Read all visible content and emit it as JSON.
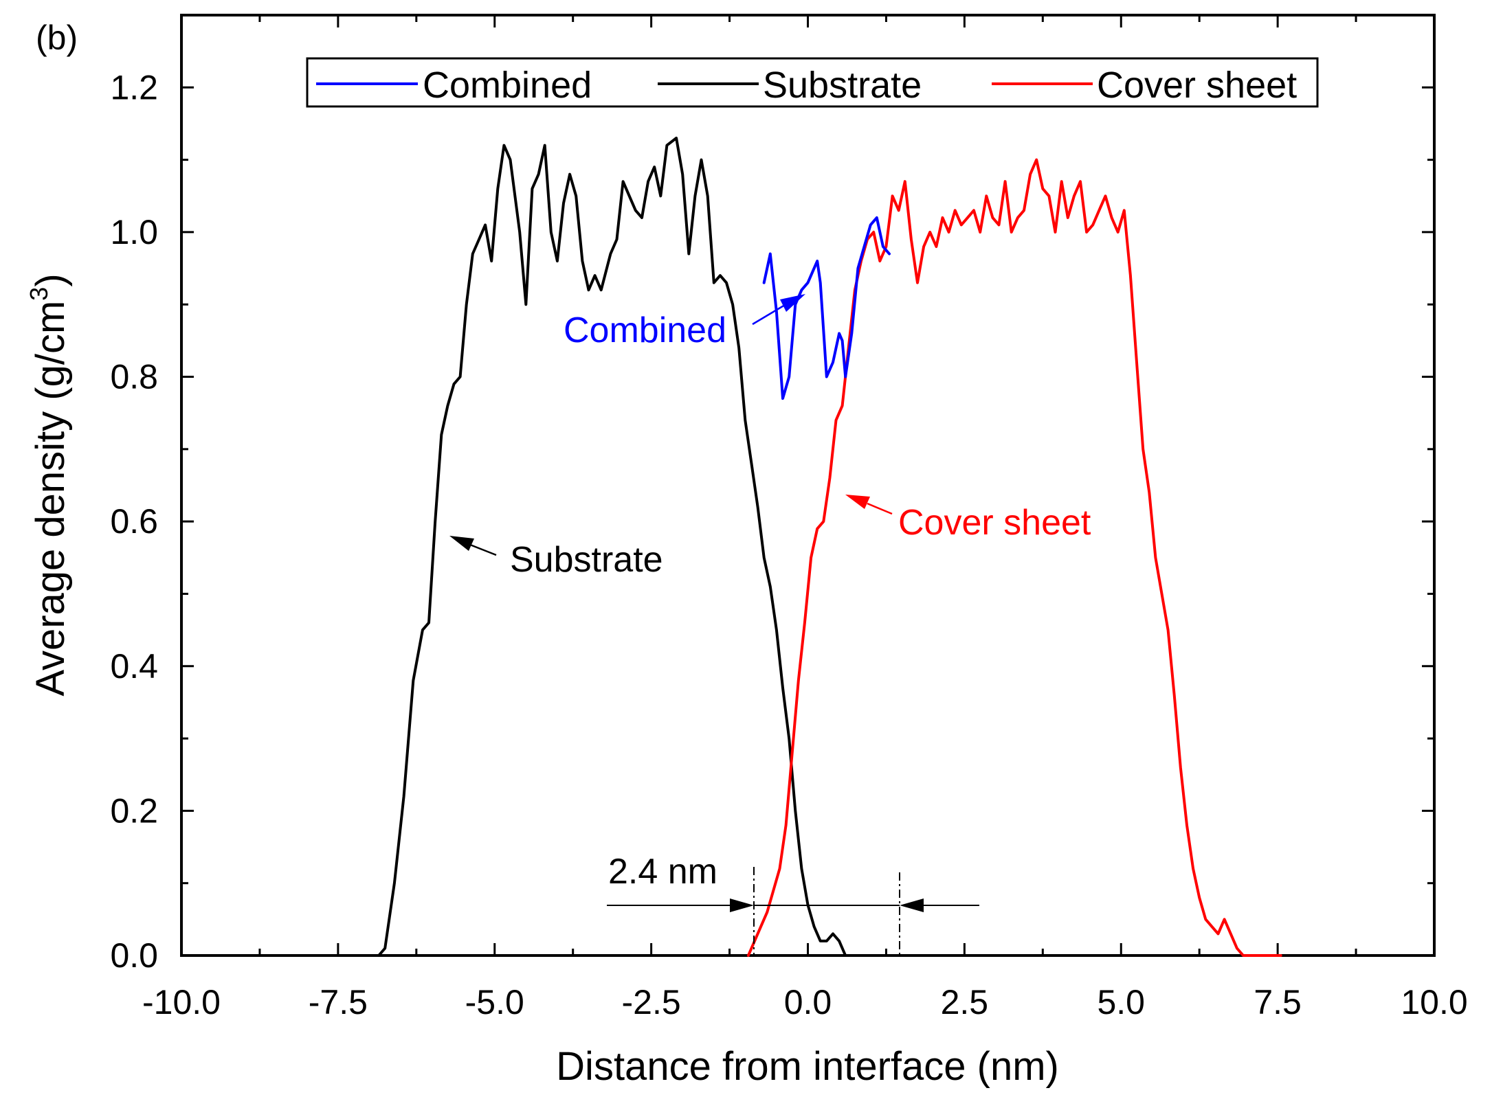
{
  "chart_data": {
    "type": "line",
    "panel_label": "(b)",
    "xlabel": "Distance from interface (nm)",
    "ylabel": "Average density (g/cm³)",
    "ylabel_base": "Average density (g/cm",
    "ylabel_sup": "3",
    "ylabel_close": ")",
    "xlim": [
      -10.0,
      10.0
    ],
    "ylim": [
      0.0,
      1.3
    ],
    "xticks": [
      -10.0,
      -7.5,
      -5.0,
      -2.5,
      0.0,
      2.5,
      5.0,
      7.5,
      10.0
    ],
    "xtick_labels": [
      "-10.0",
      "-7.5",
      "-5.0",
      "-2.5",
      "0.0",
      "2.5",
      "5.0",
      "7.5",
      "10.0"
    ],
    "yticks": [
      0.0,
      0.2,
      0.4,
      0.6,
      0.8,
      1.0,
      1.2
    ],
    "ytick_labels": [
      "0.0",
      "0.2",
      "0.4",
      "0.6",
      "0.8",
      "1.0",
      "1.2"
    ],
    "grid": false,
    "legend": {
      "position": "top",
      "entries": [
        "Combined",
        "Substrate",
        "Cover sheet"
      ]
    },
    "series": [
      {
        "name": "Substrate",
        "color": "#000000",
        "x": [
          -6.85,
          -6.75,
          -6.6,
          -6.45,
          -6.3,
          -6.15,
          -6.05,
          -5.95,
          -5.85,
          -5.75,
          -5.65,
          -5.55,
          -5.45,
          -5.35,
          -5.25,
          -5.15,
          -5.05,
          -4.95,
          -4.85,
          -4.75,
          -4.6,
          -4.5,
          -4.4,
          -4.3,
          -4.2,
          -4.1,
          -4.0,
          -3.9,
          -3.8,
          -3.7,
          -3.6,
          -3.5,
          -3.4,
          -3.3,
          -3.15,
          -3.05,
          -2.95,
          -2.85,
          -2.75,
          -2.65,
          -2.55,
          -2.45,
          -2.35,
          -2.25,
          -2.1,
          -2.0,
          -1.9,
          -1.8,
          -1.7,
          -1.6,
          -1.5,
          -1.4,
          -1.3,
          -1.2,
          -1.1,
          -1.0,
          -0.9,
          -0.8,
          -0.7,
          -0.6,
          -0.5,
          -0.4,
          -0.3,
          -0.2,
          -0.1,
          0.0,
          0.1,
          0.2,
          0.3,
          0.4,
          0.5,
          0.6,
          0.7,
          0.8,
          0.9,
          1.0,
          1.1,
          1.2,
          1.3,
          1.4
        ],
        "values": [
          0.0,
          0.01,
          0.1,
          0.22,
          0.38,
          0.45,
          0.46,
          0.6,
          0.72,
          0.76,
          0.79,
          0.8,
          0.9,
          0.97,
          0.99,
          1.01,
          0.96,
          1.06,
          1.12,
          1.1,
          1.0,
          0.9,
          1.06,
          1.08,
          1.12,
          1.0,
          0.96,
          1.04,
          1.08,
          1.05,
          0.96,
          0.92,
          0.94,
          0.92,
          0.97,
          0.99,
          1.07,
          1.05,
          1.03,
          1.02,
          1.07,
          1.09,
          1.05,
          1.12,
          1.13,
          1.08,
          0.97,
          1.05,
          1.1,
          1.05,
          0.93,
          0.94,
          0.93,
          0.9,
          0.84,
          0.74,
          0.68,
          0.62,
          0.55,
          0.51,
          0.45,
          0.37,
          0.3,
          0.2,
          0.12,
          0.07,
          0.04,
          0.02,
          0.02,
          0.03,
          0.02,
          0.0,
          0.0,
          0.0,
          0.0,
          0.0,
          0.0,
          0.0,
          0.0,
          0.0
        ]
      },
      {
        "name": "Cover sheet",
        "color": "#ff0000",
        "x": [
          -0.95,
          -0.85,
          -0.75,
          -0.65,
          -0.55,
          -0.45,
          -0.35,
          -0.25,
          -0.15,
          -0.05,
          0.05,
          0.15,
          0.25,
          0.35,
          0.45,
          0.55,
          0.65,
          0.75,
          0.85,
          0.95,
          1.05,
          1.15,
          1.25,
          1.35,
          1.45,
          1.55,
          1.65,
          1.75,
          1.85,
          1.95,
          2.05,
          2.15,
          2.25,
          2.35,
          2.45,
          2.55,
          2.65,
          2.75,
          2.85,
          2.95,
          3.05,
          3.15,
          3.25,
          3.35,
          3.45,
          3.55,
          3.65,
          3.75,
          3.85,
          3.95,
          4.05,
          4.15,
          4.25,
          4.35,
          4.45,
          4.55,
          4.65,
          4.75,
          4.85,
          4.95,
          5.05,
          5.15,
          5.25,
          5.35,
          5.45,
          5.55,
          5.65,
          5.75,
          5.85,
          5.95,
          6.05,
          6.15,
          6.25,
          6.35,
          6.45,
          6.55,
          6.65,
          6.75,
          6.85,
          6.95,
          7.05,
          7.15,
          7.25,
          7.35,
          7.45,
          7.55
        ],
        "values": [
          0.0,
          0.02,
          0.04,
          0.06,
          0.09,
          0.12,
          0.18,
          0.28,
          0.38,
          0.46,
          0.55,
          0.59,
          0.6,
          0.66,
          0.74,
          0.76,
          0.84,
          0.92,
          0.96,
          0.99,
          1.0,
          0.96,
          0.98,
          1.05,
          1.03,
          1.07,
          0.99,
          0.93,
          0.98,
          1.0,
          0.98,
          1.02,
          1.0,
          1.03,
          1.01,
          1.02,
          1.03,
          1.0,
          1.05,
          1.02,
          1.01,
          1.07,
          1.0,
          1.02,
          1.03,
          1.08,
          1.1,
          1.06,
          1.05,
          1.0,
          1.07,
          1.02,
          1.05,
          1.07,
          1.0,
          1.01,
          1.03,
          1.05,
          1.02,
          1.0,
          1.03,
          0.94,
          0.82,
          0.7,
          0.64,
          0.55,
          0.5,
          0.45,
          0.36,
          0.26,
          0.18,
          0.12,
          0.08,
          0.05,
          0.04,
          0.03,
          0.05,
          0.03,
          0.01,
          0.0,
          0.0,
          0.0,
          0.0,
          0.0,
          0.0,
          0.0
        ]
      },
      {
        "name": "Combined",
        "color": "#0000ff",
        "x": [
          -0.7,
          -0.6,
          -0.5,
          -0.4,
          -0.3,
          -0.2,
          -0.1,
          0.0,
          0.1,
          0.15,
          0.2,
          0.3,
          0.4,
          0.5,
          0.55,
          0.6,
          0.7,
          0.8,
          0.9,
          1.0,
          1.1,
          1.2,
          1.3
        ],
        "values": [
          0.93,
          0.97,
          0.89,
          0.77,
          0.8,
          0.9,
          0.92,
          0.93,
          0.95,
          0.96,
          0.93,
          0.8,
          0.82,
          0.86,
          0.85,
          0.8,
          0.86,
          0.95,
          0.98,
          1.01,
          1.02,
          0.98,
          0.97
        ]
      }
    ],
    "annotations": [
      {
        "text": "Combined",
        "color": "#0000ff"
      },
      {
        "text": "Substrate",
        "color": "#000000"
      },
      {
        "text": "Cover sheet",
        "color": "#ff0000"
      },
      {
        "text": "2.4 nm",
        "color": "#000000"
      }
    ]
  }
}
